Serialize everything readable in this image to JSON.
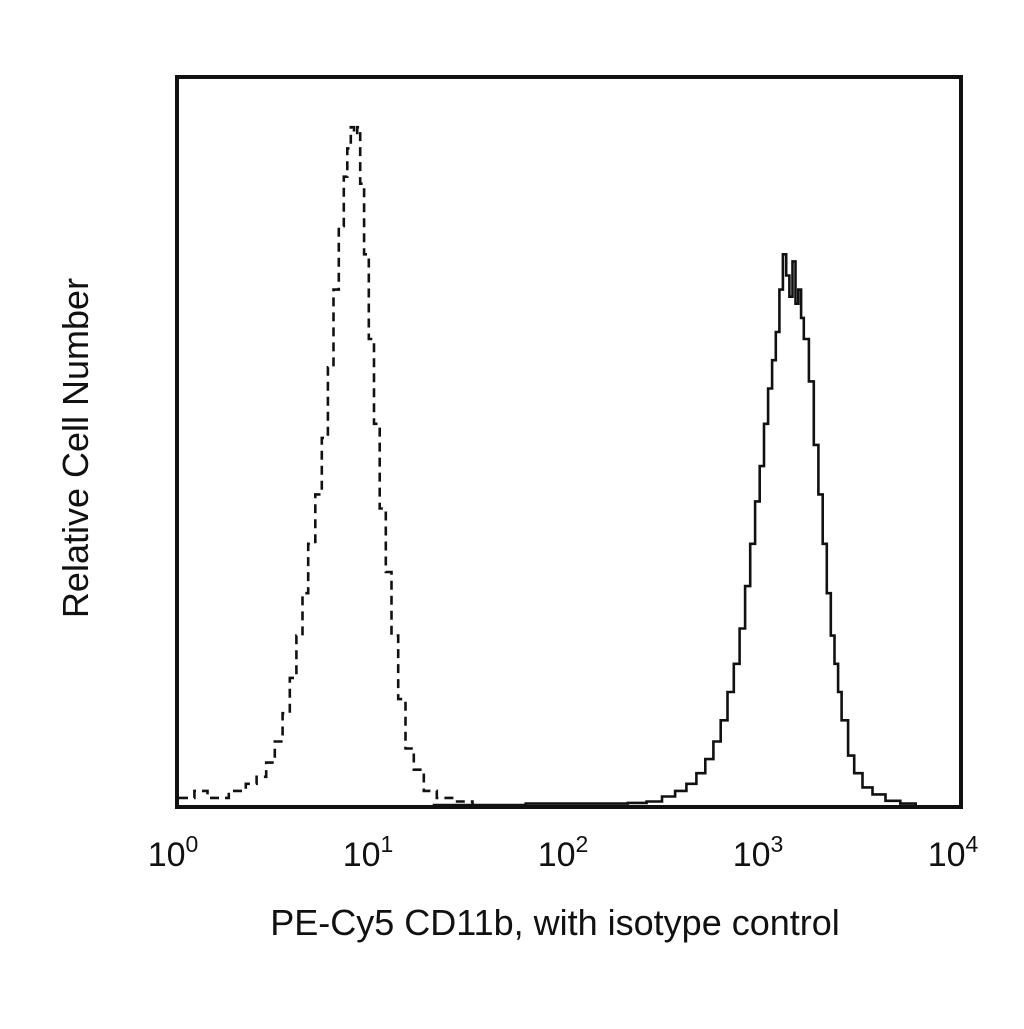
{
  "chart_data": {
    "type": "line",
    "xlabel": "PE-Cy5 CD11b, with isotype control",
    "ylabel": "Relative Cell Number",
    "x_scale": "log",
    "xlim": [
      1,
      10000
    ],
    "ylim": [
      0,
      1.0
    ],
    "grid": false,
    "legend": "none",
    "x_ticks": [
      {
        "base": "10",
        "exp": "0",
        "value": 1
      },
      {
        "base": "10",
        "exp": "1",
        "value": 10
      },
      {
        "base": "10",
        "exp": "2",
        "value": 100
      },
      {
        "base": "10",
        "exp": "3",
        "value": 1000
      },
      {
        "base": "10",
        "exp": "4",
        "value": 10000
      }
    ],
    "series": [
      {
        "style": "dashed",
        "color": "#111111",
        "points": [
          [
            1.0,
            0.01
          ],
          [
            1.2,
            0.02
          ],
          [
            1.4,
            0.01
          ],
          [
            1.6,
            0.01
          ],
          [
            1.8,
            0.02
          ],
          [
            2.0,
            0.02
          ],
          [
            2.2,
            0.03
          ],
          [
            2.5,
            0.04
          ],
          [
            2.8,
            0.06
          ],
          [
            3.1,
            0.09
          ],
          [
            3.4,
            0.13
          ],
          [
            3.7,
            0.18
          ],
          [
            4.0,
            0.24
          ],
          [
            4.3,
            0.3
          ],
          [
            4.6,
            0.37
          ],
          [
            5.0,
            0.44
          ],
          [
            5.4,
            0.52
          ],
          [
            5.8,
            0.62
          ],
          [
            6.2,
            0.73
          ],
          [
            6.6,
            0.82
          ],
          [
            7.0,
            0.89
          ],
          [
            7.3,
            0.93
          ],
          [
            7.6,
            0.96
          ],
          [
            7.9,
            0.95
          ],
          [
            8.2,
            0.96
          ],
          [
            8.5,
            0.88
          ],
          [
            8.9,
            0.78
          ],
          [
            9.4,
            0.66
          ],
          [
            10.0,
            0.54
          ],
          [
            10.7,
            0.42
          ],
          [
            11.5,
            0.33
          ],
          [
            12.3,
            0.24
          ],
          [
            13.3,
            0.15
          ],
          [
            14.5,
            0.08
          ],
          [
            16.0,
            0.05
          ],
          [
            18.0,
            0.02
          ],
          [
            21.0,
            0.01
          ],
          [
            26.0,
            0.005
          ],
          [
            32.0,
            0.0
          ]
        ]
      },
      {
        "style": "solid",
        "color": "#111111",
        "points": [
          [
            20,
            0.0
          ],
          [
            40,
            0.0
          ],
          [
            60,
            0.002
          ],
          [
            100,
            0.002
          ],
          [
            150,
            0.002
          ],
          [
            200,
            0.003
          ],
          [
            250,
            0.005
          ],
          [
            300,
            0.012
          ],
          [
            350,
            0.02
          ],
          [
            400,
            0.03
          ],
          [
            450,
            0.045
          ],
          [
            500,
            0.065
          ],
          [
            550,
            0.09
          ],
          [
            600,
            0.12
          ],
          [
            650,
            0.16
          ],
          [
            700,
            0.2
          ],
          [
            750,
            0.25
          ],
          [
            800,
            0.31
          ],
          [
            850,
            0.37
          ],
          [
            900,
            0.43
          ],
          [
            950,
            0.48
          ],
          [
            1000,
            0.54
          ],
          [
            1050,
            0.59
          ],
          [
            1100,
            0.63
          ],
          [
            1150,
            0.67
          ],
          [
            1200,
            0.73
          ],
          [
            1250,
            0.78
          ],
          [
            1300,
            0.75
          ],
          [
            1350,
            0.72
          ],
          [
            1400,
            0.77
          ],
          [
            1450,
            0.71
          ],
          [
            1500,
            0.73
          ],
          [
            1550,
            0.69
          ],
          [
            1600,
            0.66
          ],
          [
            1700,
            0.6
          ],
          [
            1800,
            0.51
          ],
          [
            1900,
            0.44
          ],
          [
            2000,
            0.37
          ],
          [
            2100,
            0.3
          ],
          [
            2200,
            0.24
          ],
          [
            2300,
            0.2
          ],
          [
            2400,
            0.16
          ],
          [
            2500,
            0.12
          ],
          [
            2700,
            0.07
          ],
          [
            2900,
            0.045
          ],
          [
            3200,
            0.025
          ],
          [
            3600,
            0.015
          ],
          [
            4200,
            0.006
          ],
          [
            5000,
            0.002
          ],
          [
            6000,
            0.0
          ]
        ]
      }
    ]
  }
}
